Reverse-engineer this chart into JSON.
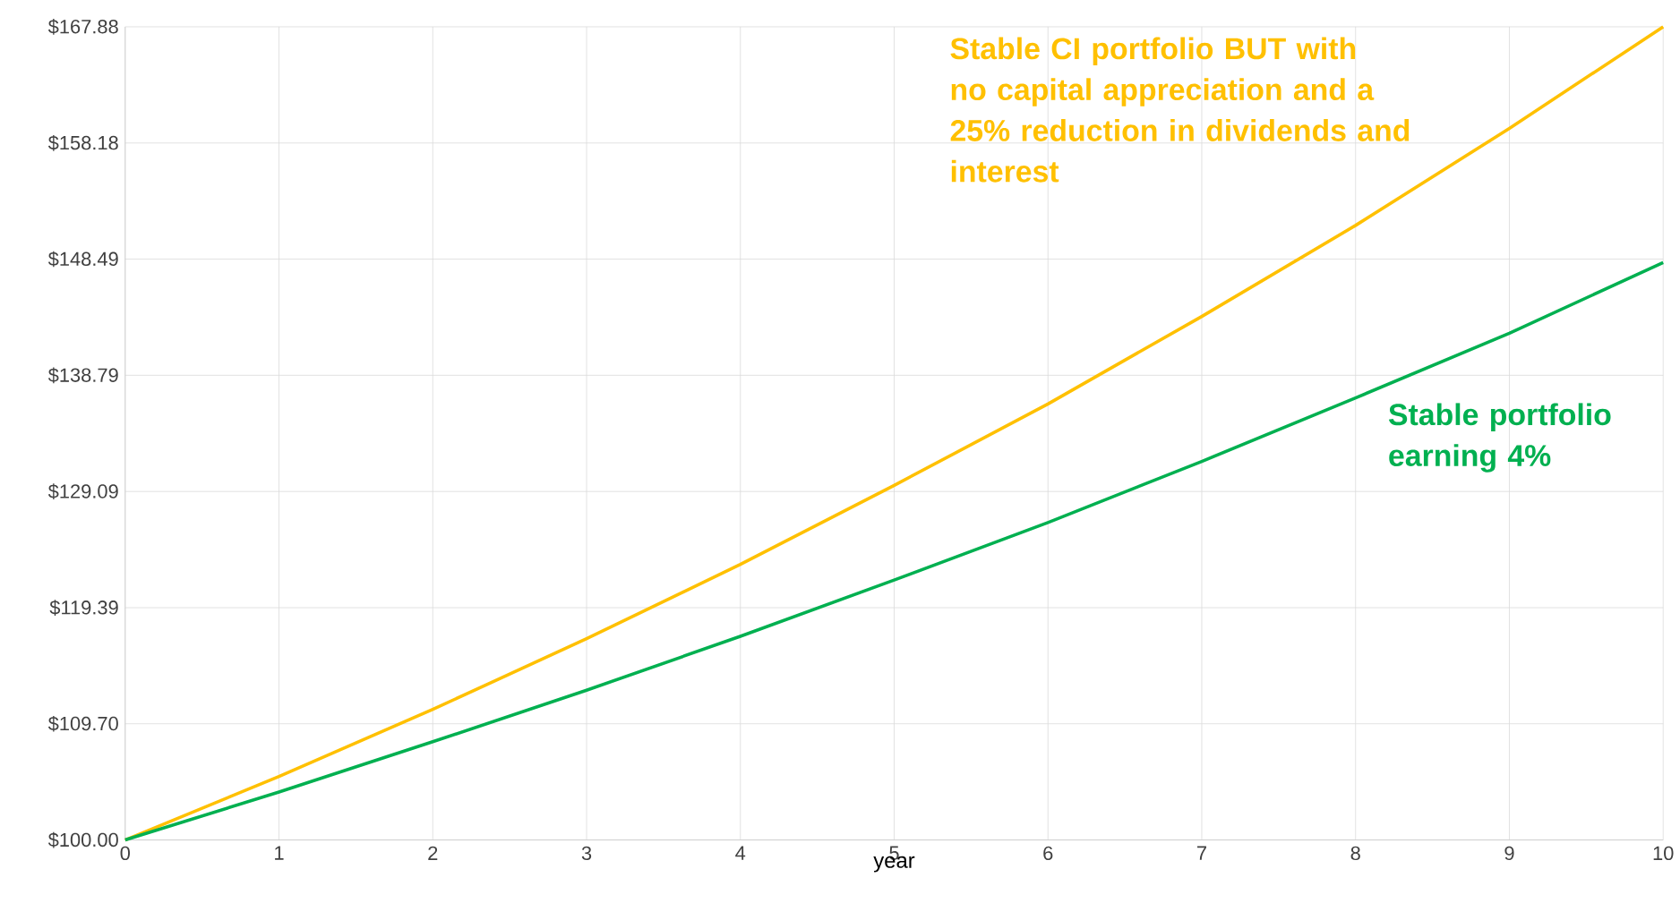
{
  "chart_data": {
    "type": "line",
    "xlabel": "year",
    "x": [
      0,
      1,
      2,
      3,
      4,
      5,
      6,
      7,
      8,
      9,
      10
    ],
    "series": [
      {
        "name": "Stable CI portfolio BUT with no capital appreciation and a 25% reduction in dividends and interest",
        "color": "#ffc000",
        "values": [
          100,
          105.3,
          110.9,
          116.8,
          123.0,
          129.6,
          136.4,
          143.7,
          151.3,
          159.4,
          167.88
        ]
      },
      {
        "name": "Stable portfolio earning 4%",
        "color": "#00b050",
        "values": [
          100,
          104.0,
          108.2,
          112.5,
          117.0,
          121.7,
          126.5,
          131.6,
          136.9,
          142.3,
          148.2
        ]
      }
    ],
    "xlim": [
      0,
      10
    ],
    "ylim": [
      100,
      167.88
    ],
    "xticks": [
      0,
      1,
      2,
      3,
      4,
      5,
      6,
      7,
      8,
      9,
      10
    ],
    "yticks": [
      {
        "value": 100,
        "label": "$100.00"
      },
      {
        "value": 109.7,
        "label": "$109.70"
      },
      {
        "value": 119.39,
        "label": "$119.39"
      },
      {
        "value": 129.09,
        "label": "$129.09"
      },
      {
        "value": 138.79,
        "label": "$138.79"
      },
      {
        "value": 148.49,
        "label": "$148.49"
      },
      {
        "value": 158.18,
        "label": "$158.18"
      },
      {
        "value": 167.88,
        "label": "$167.88"
      }
    ],
    "grid": true,
    "legend": false,
    "marker": "none",
    "line_style": "solid"
  }
}
